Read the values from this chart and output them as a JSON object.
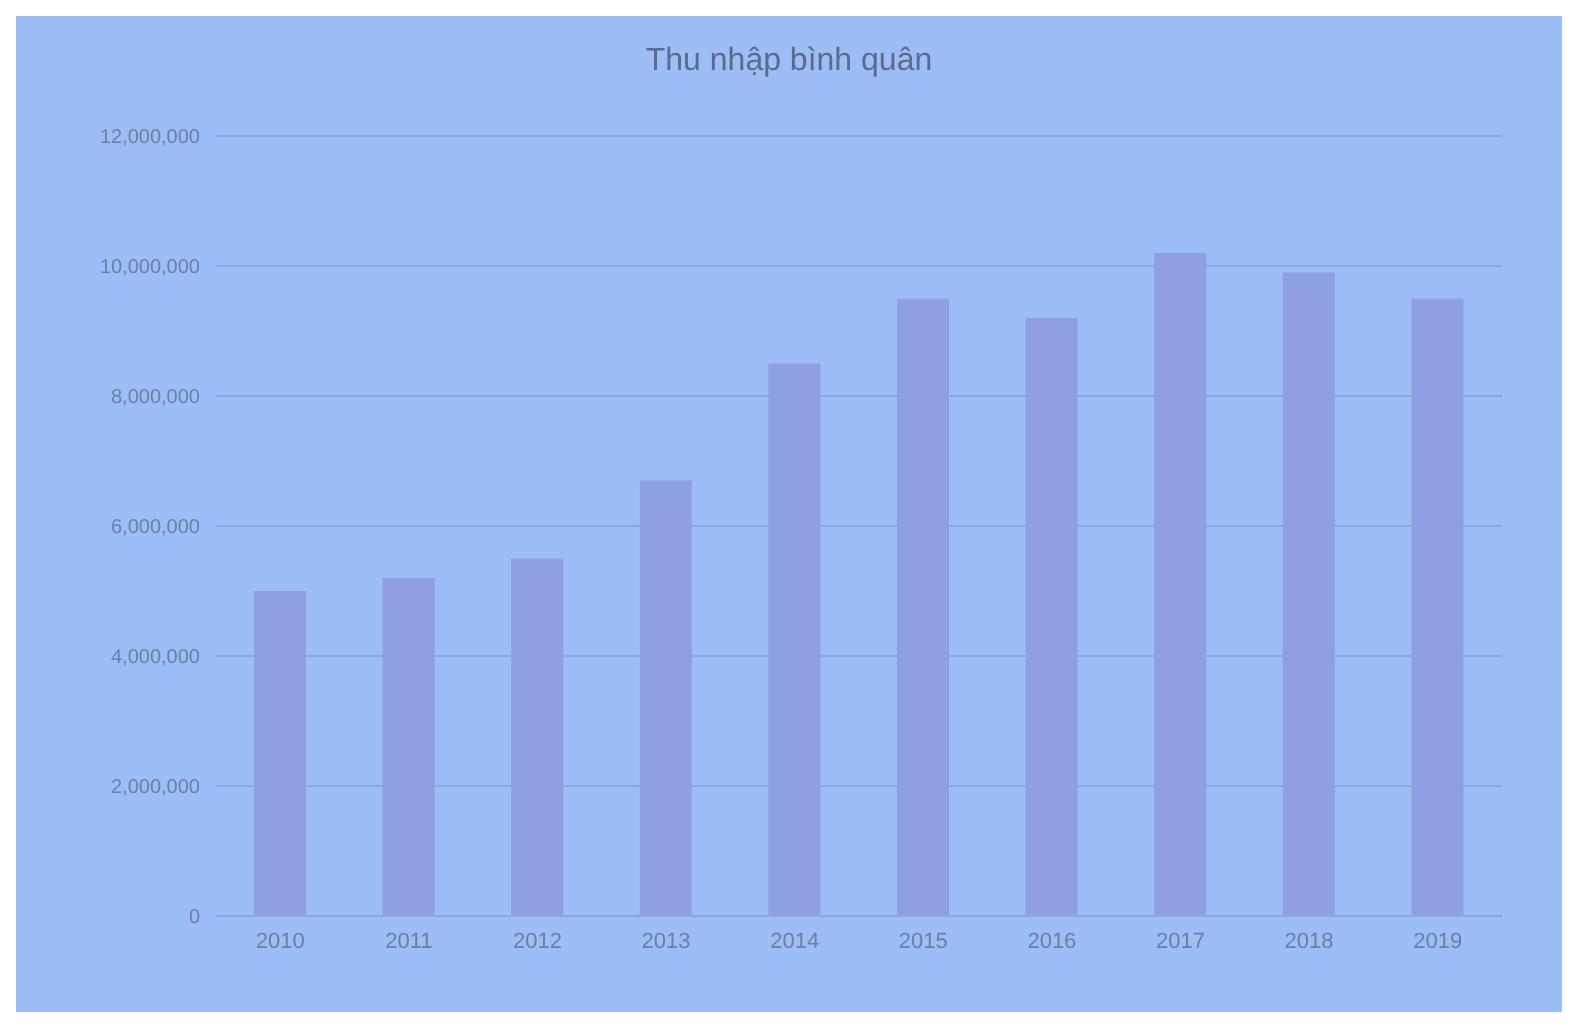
{
  "chart_data": {
    "type": "bar",
    "title": "Thu nhập bình quân",
    "categories": [
      "2010",
      "2011",
      "2012",
      "2013",
      "2014",
      "2015",
      "2016",
      "2017",
      "2018",
      "2019"
    ],
    "values": [
      5000000,
      5200000,
      5500000,
      6700000,
      8500000,
      9500000,
      9200000,
      10200000,
      9900000,
      9500000
    ],
    "color": "#8e9fe2",
    "ylim": [
      0,
      12000000
    ],
    "yticks": [
      {
        "value": 0,
        "label": "0"
      },
      {
        "value": 2000000,
        "label": "2,000,000"
      },
      {
        "value": 4000000,
        "label": "4,000,000"
      },
      {
        "value": 6000000,
        "label": "6,000,000"
      },
      {
        "value": 8000000,
        "label": "8,000,000"
      },
      {
        "value": 10000000,
        "label": "10,000,000"
      },
      {
        "value": 12000000,
        "label": "12,000,000"
      }
    ],
    "grid": "y"
  }
}
